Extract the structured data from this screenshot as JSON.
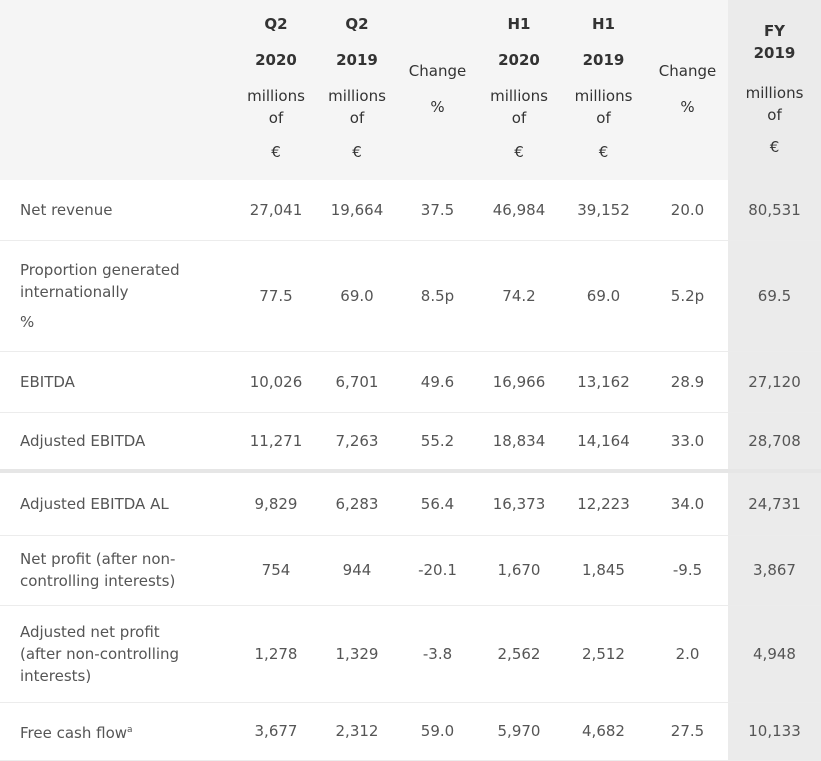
{
  "header": {
    "columns": [
      {
        "period": "Q2",
        "year": "2020",
        "unit": "millions of",
        "currency": "€"
      },
      {
        "period": "Q2",
        "year": "2019",
        "unit": "millions of",
        "currency": "€"
      },
      {
        "change": "Change",
        "pct": "%"
      },
      {
        "period": "H1",
        "year": "2020",
        "unit": "millions of",
        "currency": "€"
      },
      {
        "period": "H1",
        "year": "2019",
        "unit": "millions of",
        "currency": "€"
      },
      {
        "change": "Change",
        "pct": "%"
      },
      {
        "period": "FY",
        "year": "2019",
        "unit": "millions of",
        "currency": "€"
      }
    ]
  },
  "rows": [
    {
      "label": "Net revenue",
      "values": [
        "27,041",
        "19,664",
        "37.5",
        "46,984",
        "39,152",
        "20.0",
        "80,531"
      ]
    },
    {
      "label": "Proportion generated internationally",
      "unit": "%",
      "values": [
        "77.5",
        "69.0",
        "8.5p",
        "74.2",
        "69.0",
        "5.2p",
        "69.5"
      ]
    },
    {
      "label": "EBITDA",
      "values": [
        "10,026",
        "6,701",
        "49.6",
        "16,966",
        "13,162",
        "28.9",
        "27,120"
      ]
    },
    {
      "label": "Adjusted EBITDA",
      "values": [
        "11,271",
        "7,263",
        "55.2",
        "18,834",
        "14,164",
        "33.0",
        "28,708"
      ]
    },
    {
      "label": "Adjusted EBITDA AL",
      "values": [
        "9,829",
        "6,283",
        "56.4",
        "16,373",
        "12,223",
        "34.0",
        "24,731"
      ]
    },
    {
      "label": "Net profit (after non-controlling interests)",
      "values": [
        "754",
        "944",
        "-20.1",
        "1,670",
        "1,845",
        "-9.5",
        "3,867"
      ]
    },
    {
      "label": "Adjusted net profit (after non-controlling interests)",
      "values": [
        "1,278",
        "1,329",
        "-3.8",
        "2,562",
        "2,512",
        "2.0",
        "4,948"
      ]
    },
    {
      "label": "Free cash flow",
      "footnote": "a",
      "values": [
        "3,677",
        "2,312",
        "59.0",
        "5,970",
        "4,682",
        "27.5",
        "10,133"
      ]
    }
  ]
}
